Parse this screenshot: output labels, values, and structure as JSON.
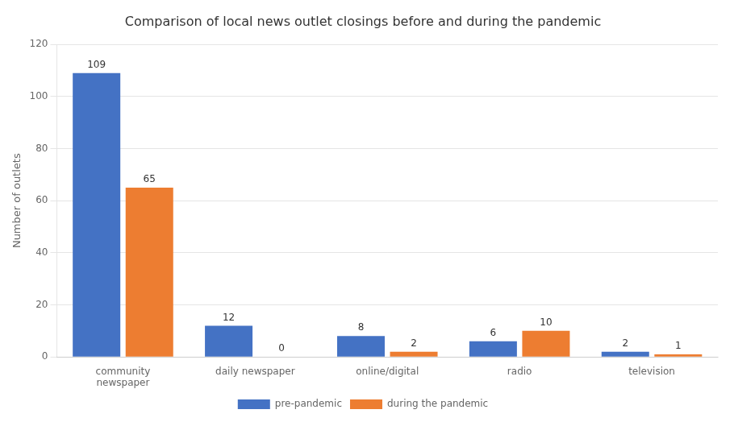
{
  "chart_data": {
    "type": "bar",
    "title": "Comparison of local news outlet closings before and during the pandemic",
    "categories": [
      "community\nnewspaper",
      "daily newspaper",
      "online/digital",
      "radio",
      "television"
    ],
    "series": [
      {
        "name": "pre-pandemic",
        "color": "#4472C4",
        "values": [
          109,
          12,
          8,
          6,
          2
        ]
      },
      {
        "name": "during the pandemic",
        "color": "#ED7D31",
        "values": [
          65,
          0,
          2,
          10,
          1
        ]
      }
    ],
    "ylabel": "Number of outlets",
    "ylim": [
      0,
      120
    ],
    "yticks": [
      0,
      20,
      40,
      60,
      80,
      100,
      120
    ],
    "grid": true,
    "legend": "bottom",
    "data_labels": true
  }
}
